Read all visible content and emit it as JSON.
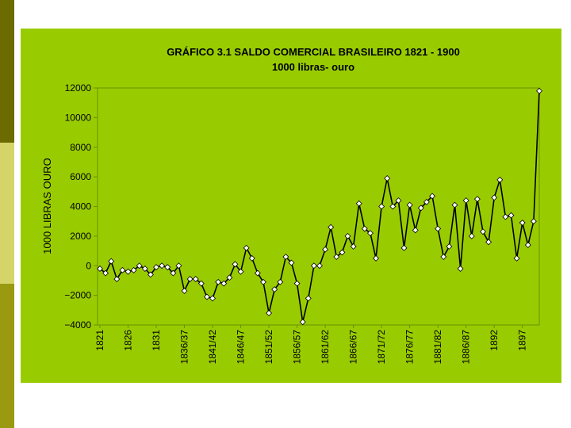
{
  "colors": {
    "side_dark": "#6b6b00",
    "side_light": "#d4d468",
    "side_mid": "#9a9a10",
    "panel": "#99cc00",
    "line": "#000000",
    "marker": "#ffffff"
  },
  "chart_data": {
    "type": "line",
    "title": "GRÁFICO 3.1 SALDO COMERCIAL BRASILEIRO  1821 - 1900",
    "subtitle": "1000 libras- ouro",
    "ylabel": "1000 LIBRAS OURO",
    "xlabel": "",
    "ylim": [
      -4000,
      12000
    ],
    "yticks": [
      12000,
      10000,
      8000,
      6000,
      4000,
      2000,
      0,
      -2000,
      -4000
    ],
    "ytick_labels": [
      "12000",
      "10000",
      "8000",
      "6000",
      "4000",
      "2000",
      "0",
      "−2000",
      "−4000"
    ],
    "xtick_labels": [
      "1821",
      "1826",
      "1831",
      "1836/37",
      "1841/42",
      "1846/47",
      "1851/52",
      "1856/57",
      "1861/62",
      "1866/67",
      "1871/72",
      "1876/77",
      "1881/82",
      "1886/87",
      "1892",
      "1897"
    ],
    "xtick_positions": [
      0,
      5,
      10,
      15,
      20,
      25,
      30,
      35,
      40,
      45,
      50,
      55,
      60,
      65,
      70,
      75
    ],
    "grid": false,
    "series": [
      {
        "values": [
          -200,
          -500,
          300,
          -900,
          -300,
          -400,
          -300,
          0,
          -200,
          -600,
          -100,
          0,
          -100,
          -500,
          0,
          -1700,
          -900,
          -900,
          -1200,
          -2100,
          -2200,
          -1100,
          -1200,
          -800,
          100,
          -400,
          1200,
          500,
          -500,
          -1100,
          -3200,
          -1600,
          -1100,
          600,
          200,
          -1200,
          -3800,
          -2200,
          0,
          0,
          1100,
          2600,
          600,
          900,
          2000,
          1300,
          4200,
          2500,
          2200,
          500,
          4000,
          5900,
          4000,
          4400,
          1200,
          4100,
          2400,
          3900,
          4300,
          4700,
          2500,
          600,
          1300,
          4100,
          -200,
          4400,
          2000,
          4500,
          2300,
          1600,
          4600,
          5800,
          3300,
          3400,
          500,
          2900,
          1400,
          3000,
          11800
        ]
      }
    ]
  }
}
